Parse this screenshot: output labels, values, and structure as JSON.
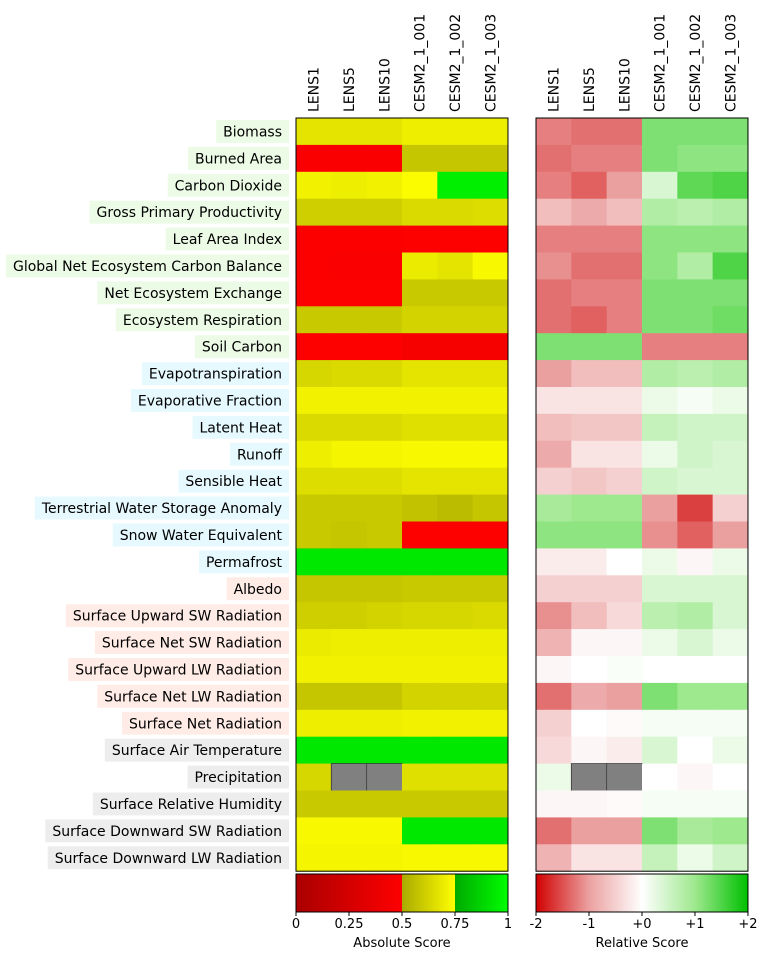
{
  "chart_data": {
    "type": "heatmap",
    "columns": [
      "LENS1",
      "LENS5",
      "LENS10",
      "CESM2_1_001",
      "CESM2_1_002",
      "CESM2_1_003"
    ],
    "rows": [
      {
        "label": "Biomass",
        "group": "ecosystem"
      },
      {
        "label": "Burned Area",
        "group": "ecosystem"
      },
      {
        "label": "Carbon Dioxide",
        "group": "ecosystem"
      },
      {
        "label": "Gross Primary Productivity",
        "group": "ecosystem"
      },
      {
        "label": "Leaf Area Index",
        "group": "ecosystem"
      },
      {
        "label": "Global Net Ecosystem Carbon Balance",
        "group": "ecosystem"
      },
      {
        "label": "Net Ecosystem Exchange",
        "group": "ecosystem"
      },
      {
        "label": "Ecosystem Respiration",
        "group": "ecosystem"
      },
      {
        "label": "Soil Carbon",
        "group": "ecosystem"
      },
      {
        "label": "Evapotranspiration",
        "group": "hydrology"
      },
      {
        "label": "Evaporative Fraction",
        "group": "hydrology"
      },
      {
        "label": "Latent Heat",
        "group": "hydrology"
      },
      {
        "label": "Runoff",
        "group": "hydrology"
      },
      {
        "label": "Sensible Heat",
        "group": "hydrology"
      },
      {
        "label": "Terrestrial Water Storage Anomaly",
        "group": "hydrology"
      },
      {
        "label": "Snow Water Equivalent",
        "group": "hydrology"
      },
      {
        "label": "Permafrost",
        "group": "hydrology"
      },
      {
        "label": "Albedo",
        "group": "radiation"
      },
      {
        "label": "Surface Upward SW Radiation",
        "group": "radiation"
      },
      {
        "label": "Surface Net SW Radiation",
        "group": "radiation"
      },
      {
        "label": "Surface Upward LW Radiation",
        "group": "radiation"
      },
      {
        "label": "Surface Net LW Radiation",
        "group": "radiation"
      },
      {
        "label": "Surface Net Radiation",
        "group": "radiation"
      },
      {
        "label": "Surface Air Temperature",
        "group": "forcing"
      },
      {
        "label": "Precipitation",
        "group": "forcing"
      },
      {
        "label": "Surface Relative Humidity",
        "group": "forcing"
      },
      {
        "label": "Surface Downward SW Radiation",
        "group": "forcing"
      },
      {
        "label": "Surface Downward LW Radiation",
        "group": "forcing"
      }
    ],
    "group_colors": {
      "ecosystem": "#ECFBE6",
      "hydrology": "#E6F9FF",
      "radiation": "#FFECE6",
      "forcing": "#EDEDED"
    },
    "absolute_scores": [
      [
        0.67,
        0.67,
        0.67,
        0.7,
        0.7,
        0.7
      ],
      [
        0.47,
        0.47,
        0.47,
        0.58,
        0.58,
        0.58
      ],
      [
        0.71,
        0.7,
        0.71,
        0.74,
        0.95,
        0.95
      ],
      [
        0.61,
        0.61,
        0.61,
        0.64,
        0.64,
        0.65
      ],
      [
        0.48,
        0.48,
        0.48,
        0.49,
        0.49,
        0.49
      ],
      [
        0.48,
        0.47,
        0.47,
        0.69,
        0.67,
        0.73
      ],
      [
        0.49,
        0.49,
        0.49,
        0.59,
        0.59,
        0.59
      ],
      [
        0.59,
        0.59,
        0.59,
        0.62,
        0.62,
        0.62
      ],
      [
        0.49,
        0.49,
        0.49,
        0.45,
        0.45,
        0.45
      ],
      [
        0.63,
        0.64,
        0.64,
        0.67,
        0.67,
        0.67
      ],
      [
        0.71,
        0.71,
        0.71,
        0.71,
        0.71,
        0.71
      ],
      [
        0.64,
        0.64,
        0.64,
        0.66,
        0.66,
        0.66
      ],
      [
        0.7,
        0.72,
        0.72,
        0.73,
        0.73,
        0.73
      ],
      [
        0.65,
        0.65,
        0.65,
        0.67,
        0.67,
        0.67
      ],
      [
        0.59,
        0.59,
        0.59,
        0.57,
        0.55,
        0.58
      ],
      [
        0.59,
        0.58,
        0.59,
        0.49,
        0.49,
        0.49
      ],
      [
        0.93,
        0.93,
        0.93,
        0.93,
        0.93,
        0.93
      ],
      [
        0.58,
        0.58,
        0.58,
        0.59,
        0.59,
        0.59
      ],
      [
        0.61,
        0.61,
        0.62,
        0.63,
        0.63,
        0.64
      ],
      [
        0.69,
        0.7,
        0.7,
        0.7,
        0.7,
        0.7
      ],
      [
        0.71,
        0.71,
        0.71,
        0.71,
        0.71,
        0.71
      ],
      [
        0.58,
        0.58,
        0.58,
        0.62,
        0.62,
        0.62
      ],
      [
        0.7,
        0.7,
        0.7,
        0.71,
        0.71,
        0.71
      ],
      [
        0.93,
        0.93,
        0.93,
        0.93,
        0.93,
        0.93
      ],
      [
        0.63,
        null,
        null,
        0.66,
        0.66,
        0.66
      ],
      [
        0.59,
        0.59,
        0.59,
        0.59,
        0.59,
        0.59
      ],
      [
        0.73,
        0.73,
        0.73,
        0.93,
        0.93,
        0.93
      ],
      [
        0.72,
        0.72,
        0.72,
        0.73,
        0.73,
        0.73
      ]
    ],
    "relative_scores": [
      [
        -1.2,
        -1.3,
        -1.3,
        1.2,
        1.2,
        1.2
      ],
      [
        -1.3,
        -1.2,
        -1.2,
        1.2,
        1.1,
        1.1
      ],
      [
        -1.2,
        -1.4,
        -1.0,
        0.4,
        1.4,
        1.5
      ],
      [
        -0.7,
        -0.9,
        -0.7,
        0.8,
        0.7,
        0.8
      ],
      [
        -1.2,
        -1.2,
        -1.2,
        1.1,
        1.1,
        1.1
      ],
      [
        -1.1,
        -1.3,
        -1.3,
        1.1,
        0.8,
        1.5
      ],
      [
        -1.3,
        -1.2,
        -1.2,
        1.2,
        1.2,
        1.2
      ],
      [
        -1.3,
        -1.4,
        -1.2,
        1.2,
        1.2,
        1.3
      ],
      [
        1.2,
        1.2,
        1.2,
        -1.2,
        -1.2,
        -1.2
      ],
      [
        -1.0,
        -0.7,
        -0.7,
        0.8,
        0.7,
        0.8
      ],
      [
        -0.3,
        -0.3,
        -0.3,
        0.2,
        0.1,
        0.2
      ],
      [
        -0.7,
        -0.6,
        -0.6,
        0.6,
        0.5,
        0.5
      ],
      [
        -0.9,
        -0.3,
        -0.3,
        0.2,
        0.5,
        0.4
      ],
      [
        -0.5,
        -0.6,
        -0.5,
        0.5,
        0.4,
        0.4
      ],
      [
        0.9,
        1.0,
        1.0,
        -1.0,
        -1.6,
        -0.5
      ],
      [
        1.1,
        1.1,
        1.1,
        -1.1,
        -1.4,
        -1.0
      ],
      [
        -0.2,
        -0.2,
        0.0,
        0.2,
        -0.1,
        0.2
      ],
      [
        -0.5,
        -0.5,
        -0.5,
        0.4,
        0.4,
        0.4
      ],
      [
        -1.1,
        -0.7,
        -0.4,
        0.7,
        0.8,
        0.4
      ],
      [
        -0.8,
        -0.1,
        -0.1,
        0.2,
        0.4,
        0.2
      ],
      [
        -0.1,
        0.0,
        0.05,
        0.0,
        0.0,
        0.0
      ],
      [
        -1.3,
        -0.9,
        -1.0,
        1.2,
        1.0,
        1.0
      ],
      [
        -0.5,
        0.0,
        -0.05,
        0.1,
        0.1,
        0.1
      ],
      [
        -0.4,
        -0.1,
        -0.2,
        0.4,
        0.0,
        0.2
      ],
      [
        0.2,
        null,
        null,
        0.0,
        -0.1,
        0.0
      ],
      [
        -0.1,
        -0.1,
        -0.05,
        0.1,
        0.1,
        0.1
      ],
      [
        -1.3,
        -1.0,
        -1.0,
        1.2,
        0.9,
        1.0
      ],
      [
        -0.8,
        -0.3,
        -0.3,
        0.6,
        0.2,
        0.5
      ]
    ],
    "absolute_colorbar": {
      "label": "Absolute Score",
      "ticks": [
        "0",
        "0.25",
        "0.5",
        "0.75",
        "1"
      ],
      "range": [
        0,
        1
      ],
      "bands": [
        {
          "from": 0.0,
          "to": 0.5,
          "start": "#AA0000",
          "end": "#FF0000"
        },
        {
          "from": 0.5,
          "to": 0.75,
          "start": "#AAAA00",
          "end": "#FFFF00"
        },
        {
          "from": 0.75,
          "to": 1.0,
          "start": "#00AA00",
          "end": "#00FF00"
        }
      ]
    },
    "relative_colorbar": {
      "label": "Relative Score",
      "ticks": [
        "-2",
        "-1",
        "+0",
        "+1",
        "+2"
      ],
      "range": [
        -2,
        2
      ],
      "stops": [
        {
          "at": -2,
          "color": "#D10000"
        },
        {
          "at": -1,
          "color": "#EBA0A0"
        },
        {
          "at": 0,
          "color": "#FFFFFF"
        },
        {
          "at": 1,
          "color": "#9EE88E"
        },
        {
          "at": 2,
          "color": "#00C000"
        }
      ]
    },
    "missing_color": "#808080"
  }
}
